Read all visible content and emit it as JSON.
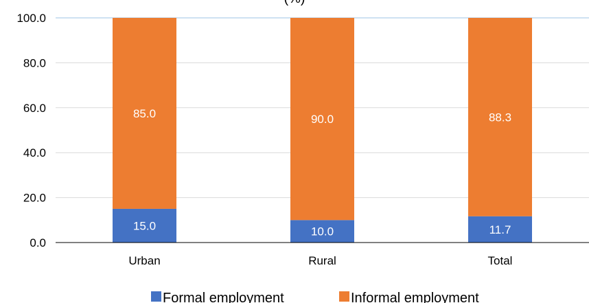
{
  "chart_data": {
    "type": "bar",
    "stacked": true,
    "title": "(%)",
    "categories": [
      "Urban",
      "Rural",
      "Total"
    ],
    "series": [
      {
        "name": "Formal employment",
        "values": [
          15.0,
          10.0,
          11.7
        ],
        "labels": [
          "15.0",
          "10.0",
          "11.7"
        ],
        "color": "#4472C4"
      },
      {
        "name": "Informal employment",
        "values": [
          85.0,
          90.0,
          88.3
        ],
        "labels": [
          "85.0",
          "90.0",
          "88.3"
        ],
        "color": "#ED7D31"
      }
    ],
    "ylim": [
      0,
      100
    ],
    "yticks": [
      "0.0",
      "20.0",
      "40.0",
      "60.0",
      "80.0",
      "100.0"
    ],
    "grid": true,
    "legend_position": "bottom"
  }
}
